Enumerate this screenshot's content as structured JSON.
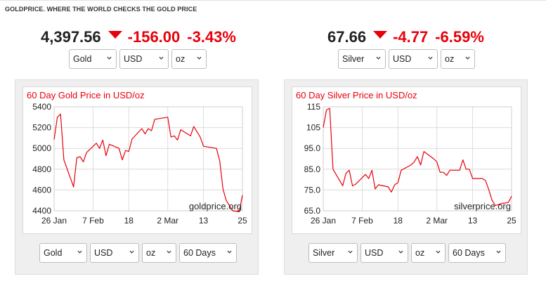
{
  "tagline": "GOLDPRICE. WHERE THE WORLD CHECKS THE GOLD PRICE",
  "colors": {
    "accent": "#e8000b",
    "line": "#e8000b"
  },
  "gold": {
    "price": "4,397.56",
    "change": "-156.00",
    "change_pct": "-3.43%",
    "direction_icon": "down-triangle-icon",
    "top_selects": {
      "metal": "Gold",
      "currency": "USD",
      "unit": "oz"
    },
    "bottom_selects": {
      "metal": "Gold",
      "currency": "USD",
      "unit": "oz",
      "range": "60 Days"
    },
    "watermark": "goldprice.org"
  },
  "silver": {
    "price": "67.66",
    "change": "-4.77",
    "change_pct": "-6.59%",
    "direction_icon": "down-triangle-icon",
    "top_selects": {
      "metal": "Silver",
      "currency": "USD",
      "unit": "oz"
    },
    "bottom_selects": {
      "metal": "Silver",
      "currency": "USD",
      "unit": "oz",
      "range": "60 Days"
    },
    "watermark": "silverprice.org"
  },
  "chart_data": [
    {
      "type": "line",
      "title": "60 Day Gold Price in USD/oz",
      "xlabel": "",
      "ylabel": "",
      "x_tick_labels": [
        "26 Jan",
        "7 Feb",
        "18",
        "2 Mar",
        "13",
        "25"
      ],
      "x_tick_days": [
        0,
        12,
        23,
        35,
        46,
        58
      ],
      "y_ticks": [
        4400,
        4600,
        4800,
        5000,
        5200,
        5400
      ],
      "y_tick_labels": [
        "4400",
        "4600",
        "4800",
        "5000",
        "5200",
        "5400"
      ],
      "ylim": [
        4400,
        5400
      ],
      "xlim": [
        0,
        58
      ],
      "grid": true,
      "series": [
        {
          "values": [
            [
              0,
              5085
            ],
            [
              1,
              5300
            ],
            [
              2,
              5330
            ],
            [
              3,
              4890
            ],
            [
              6,
              4630
            ],
            [
              7,
              4910
            ],
            [
              8,
              4920
            ],
            [
              9,
              4870
            ],
            [
              10,
              4960
            ],
            [
              13,
              5050
            ],
            [
              14,
              5000
            ],
            [
              15,
              5080
            ],
            [
              16,
              4930
            ],
            [
              17,
              5040
            ],
            [
              20,
              5000
            ],
            [
              21,
              4890
            ],
            [
              22,
              4980
            ],
            [
              23,
              4970
            ],
            [
              24,
              5090
            ],
            [
              27,
              5190
            ],
            [
              28,
              5140
            ],
            [
              29,
              5190
            ],
            [
              30,
              5170
            ],
            [
              31,
              5280
            ],
            [
              35,
              5300
            ],
            [
              36,
              5110
            ],
            [
              37,
              5120
            ],
            [
              38,
              5080
            ],
            [
              39,
              5180
            ],
            [
              42,
              5120
            ],
            [
              43,
              5210
            ],
            [
              45,
              5110
            ],
            [
              46,
              5020
            ],
            [
              50,
              5000
            ],
            [
              51,
              4880
            ],
            [
              52,
              4610
            ],
            [
              53,
              4500
            ],
            [
              55,
              4400
            ],
            [
              57,
              4390
            ],
            [
              58,
              4550
            ]
          ]
        }
      ]
    },
    {
      "type": "line",
      "title": "60 Day Silver Price in USD/oz",
      "xlabel": "",
      "ylabel": "",
      "x_tick_labels": [
        "26 Jan",
        "7 Feb",
        "18",
        "2 Mar",
        "13",
        "25"
      ],
      "x_tick_days": [
        0,
        12,
        23,
        35,
        46,
        58
      ],
      "y_ticks": [
        65,
        75,
        85,
        95,
        105,
        115
      ],
      "y_tick_labels": [
        "65.0",
        "75.0",
        "85.0",
        "95.0",
        "105",
        "115"
      ],
      "ylim": [
        65,
        115
      ],
      "xlim": [
        0,
        58
      ],
      "grid": true,
      "series": [
        {
          "values": [
            [
              0,
              105
            ],
            [
              1,
              113.5
            ],
            [
              2,
              114.3
            ],
            [
              3,
              85
            ],
            [
              6,
              77
            ],
            [
              7,
              83
            ],
            [
              8,
              84.5
            ],
            [
              9,
              77
            ],
            [
              10,
              77.8
            ],
            [
              13,
              82.5
            ],
            [
              14,
              80.5
            ],
            [
              15,
              84.5
            ],
            [
              16,
              75.5
            ],
            [
              17,
              77.5
            ],
            [
              20,
              76.5
            ],
            [
              21,
              74
            ],
            [
              22,
              77.5
            ],
            [
              23,
              78.5
            ],
            [
              24,
              84.5
            ],
            [
              27,
              87
            ],
            [
              28,
              88.5
            ],
            [
              29,
              91
            ],
            [
              30,
              87
            ],
            [
              31,
              93.5
            ],
            [
              34,
              90
            ],
            [
              35,
              88.5
            ],
            [
              36,
              83.5
            ],
            [
              37,
              83.5
            ],
            [
              38,
              82
            ],
            [
              39,
              84.5
            ],
            [
              42,
              84.5
            ],
            [
              43,
              89.5
            ],
            [
              44,
              85
            ],
            [
              45,
              85
            ],
            [
              46,
              80.5
            ],
            [
              49,
              80.5
            ],
            [
              50,
              79.5
            ],
            [
              51,
              75
            ],
            [
              52,
              70
            ],
            [
              53,
              67.5
            ],
            [
              55,
              68.5
            ],
            [
              57,
              69
            ],
            [
              58,
              72
            ]
          ]
        }
      ]
    }
  ]
}
